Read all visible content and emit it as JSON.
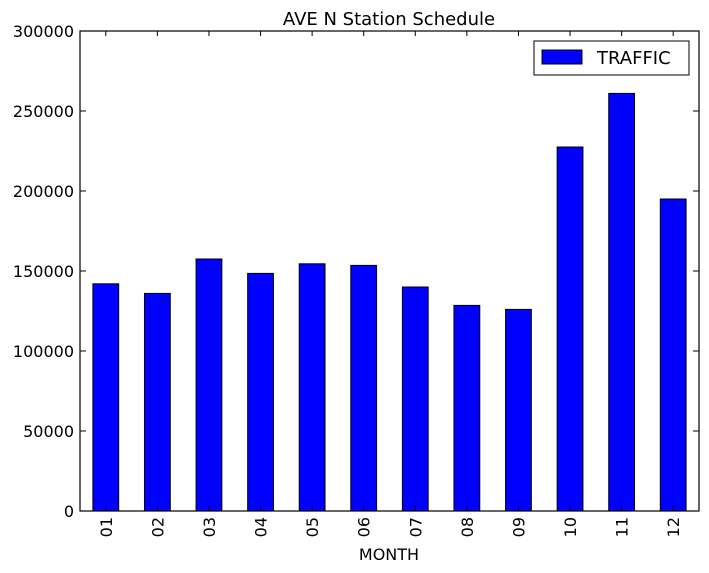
{
  "chart_data": {
    "type": "bar",
    "title": "AVE N Station Schedule",
    "xlabel": "MONTH",
    "ylabel": "",
    "categories": [
      "01",
      "02",
      "03",
      "04",
      "05",
      "06",
      "07",
      "08",
      "09",
      "10",
      "11",
      "12"
    ],
    "series": [
      {
        "name": "TRAFFIC",
        "color": "#0000ff",
        "values": [
          142000,
          136000,
          157500,
          148500,
          154500,
          153500,
          140000,
          128500,
          126000,
          227500,
          261000,
          195000
        ]
      }
    ],
    "ylim": [
      0,
      300000
    ],
    "yticks": [
      0,
      50000,
      100000,
      150000,
      200000,
      250000,
      300000
    ],
    "ytick_labels": [
      "0",
      "50000",
      "100000",
      "150000",
      "200000",
      "250000",
      "300000"
    ],
    "grid": false,
    "legend": "top-right"
  }
}
